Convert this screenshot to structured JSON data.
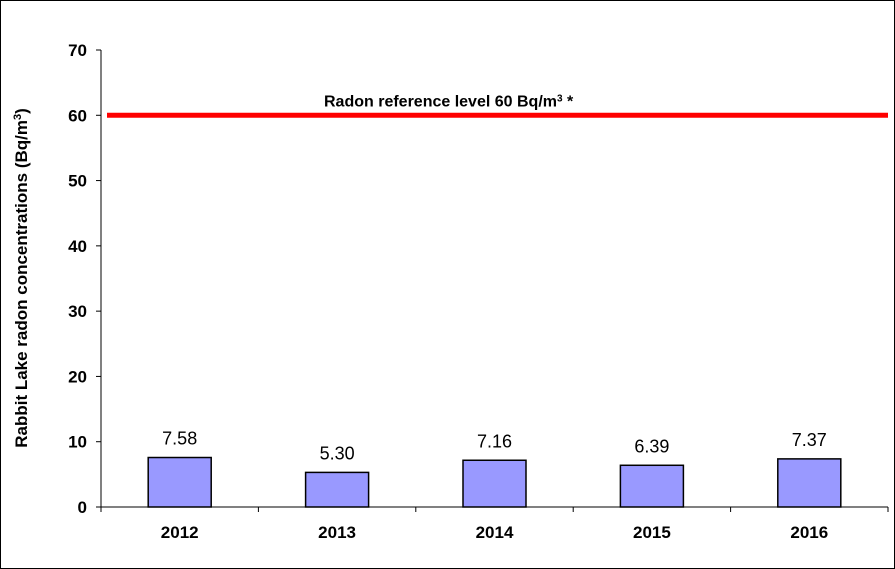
{
  "chart_data": {
    "type": "bar",
    "categories": [
      "2012",
      "2013",
      "2014",
      "2015",
      "2016"
    ],
    "values": [
      7.58,
      5.3,
      7.16,
      6.39,
      7.37
    ],
    "value_labels": [
      "7.58",
      "5.30",
      "7.16",
      "6.39",
      "7.37"
    ],
    "ylabel_main": "Rabbit Lake radon concentrations (Bq/m",
    "ylabel_sup": "3",
    "ylabel_close": ")",
    "ylim": [
      0,
      70
    ],
    "yticks": [
      0,
      10,
      20,
      30,
      40,
      50,
      60,
      70
    ],
    "grid": false,
    "bar_color": "#9999ff",
    "reference_line": {
      "value": 60,
      "color": "#ff0000",
      "label_main": "Radon reference level 60 Bq/m",
      "label_sup": "3",
      "label_tail": " *"
    }
  }
}
